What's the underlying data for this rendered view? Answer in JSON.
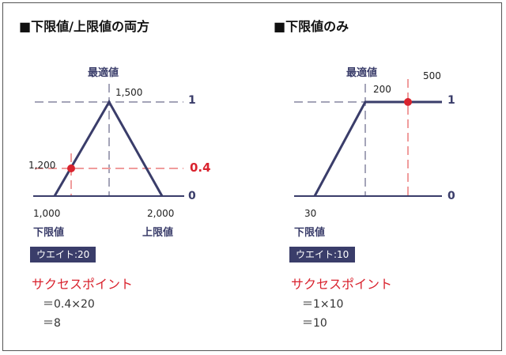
{
  "left": {
    "title": "■下限値/上限値の両方",
    "optimal_label": "最適値",
    "peak_label": "1,500",
    "point_label": "1,200",
    "y_one": "1",
    "y_point": "0.4",
    "y_zero": "0",
    "x_low_value": "1,000",
    "x_low_label": "下限値",
    "x_high_value": "2,000",
    "x_high_label": "上限値",
    "weight": "ウエイト:20",
    "success_title": "サクセスポイント",
    "formula_1": "＝0.4×20",
    "formula_2": "＝8"
  },
  "right": {
    "title": "■下限値のみ",
    "optimal_label": "最適値",
    "optimal_value": "200",
    "point_value": "500",
    "y_one": "1",
    "y_zero": "0",
    "x_low_value": "30",
    "x_low_label": "下限値",
    "weight": "ウエイト:10",
    "success_title": "サクセスポイント",
    "formula_1": "＝1×10",
    "formula_2": "＝10"
  },
  "colors": {
    "navy": "#3a3d6a",
    "red": "#d9232e",
    "guide_gray": "#a4a4b8",
    "guide_red": "#f09c9c"
  }
}
